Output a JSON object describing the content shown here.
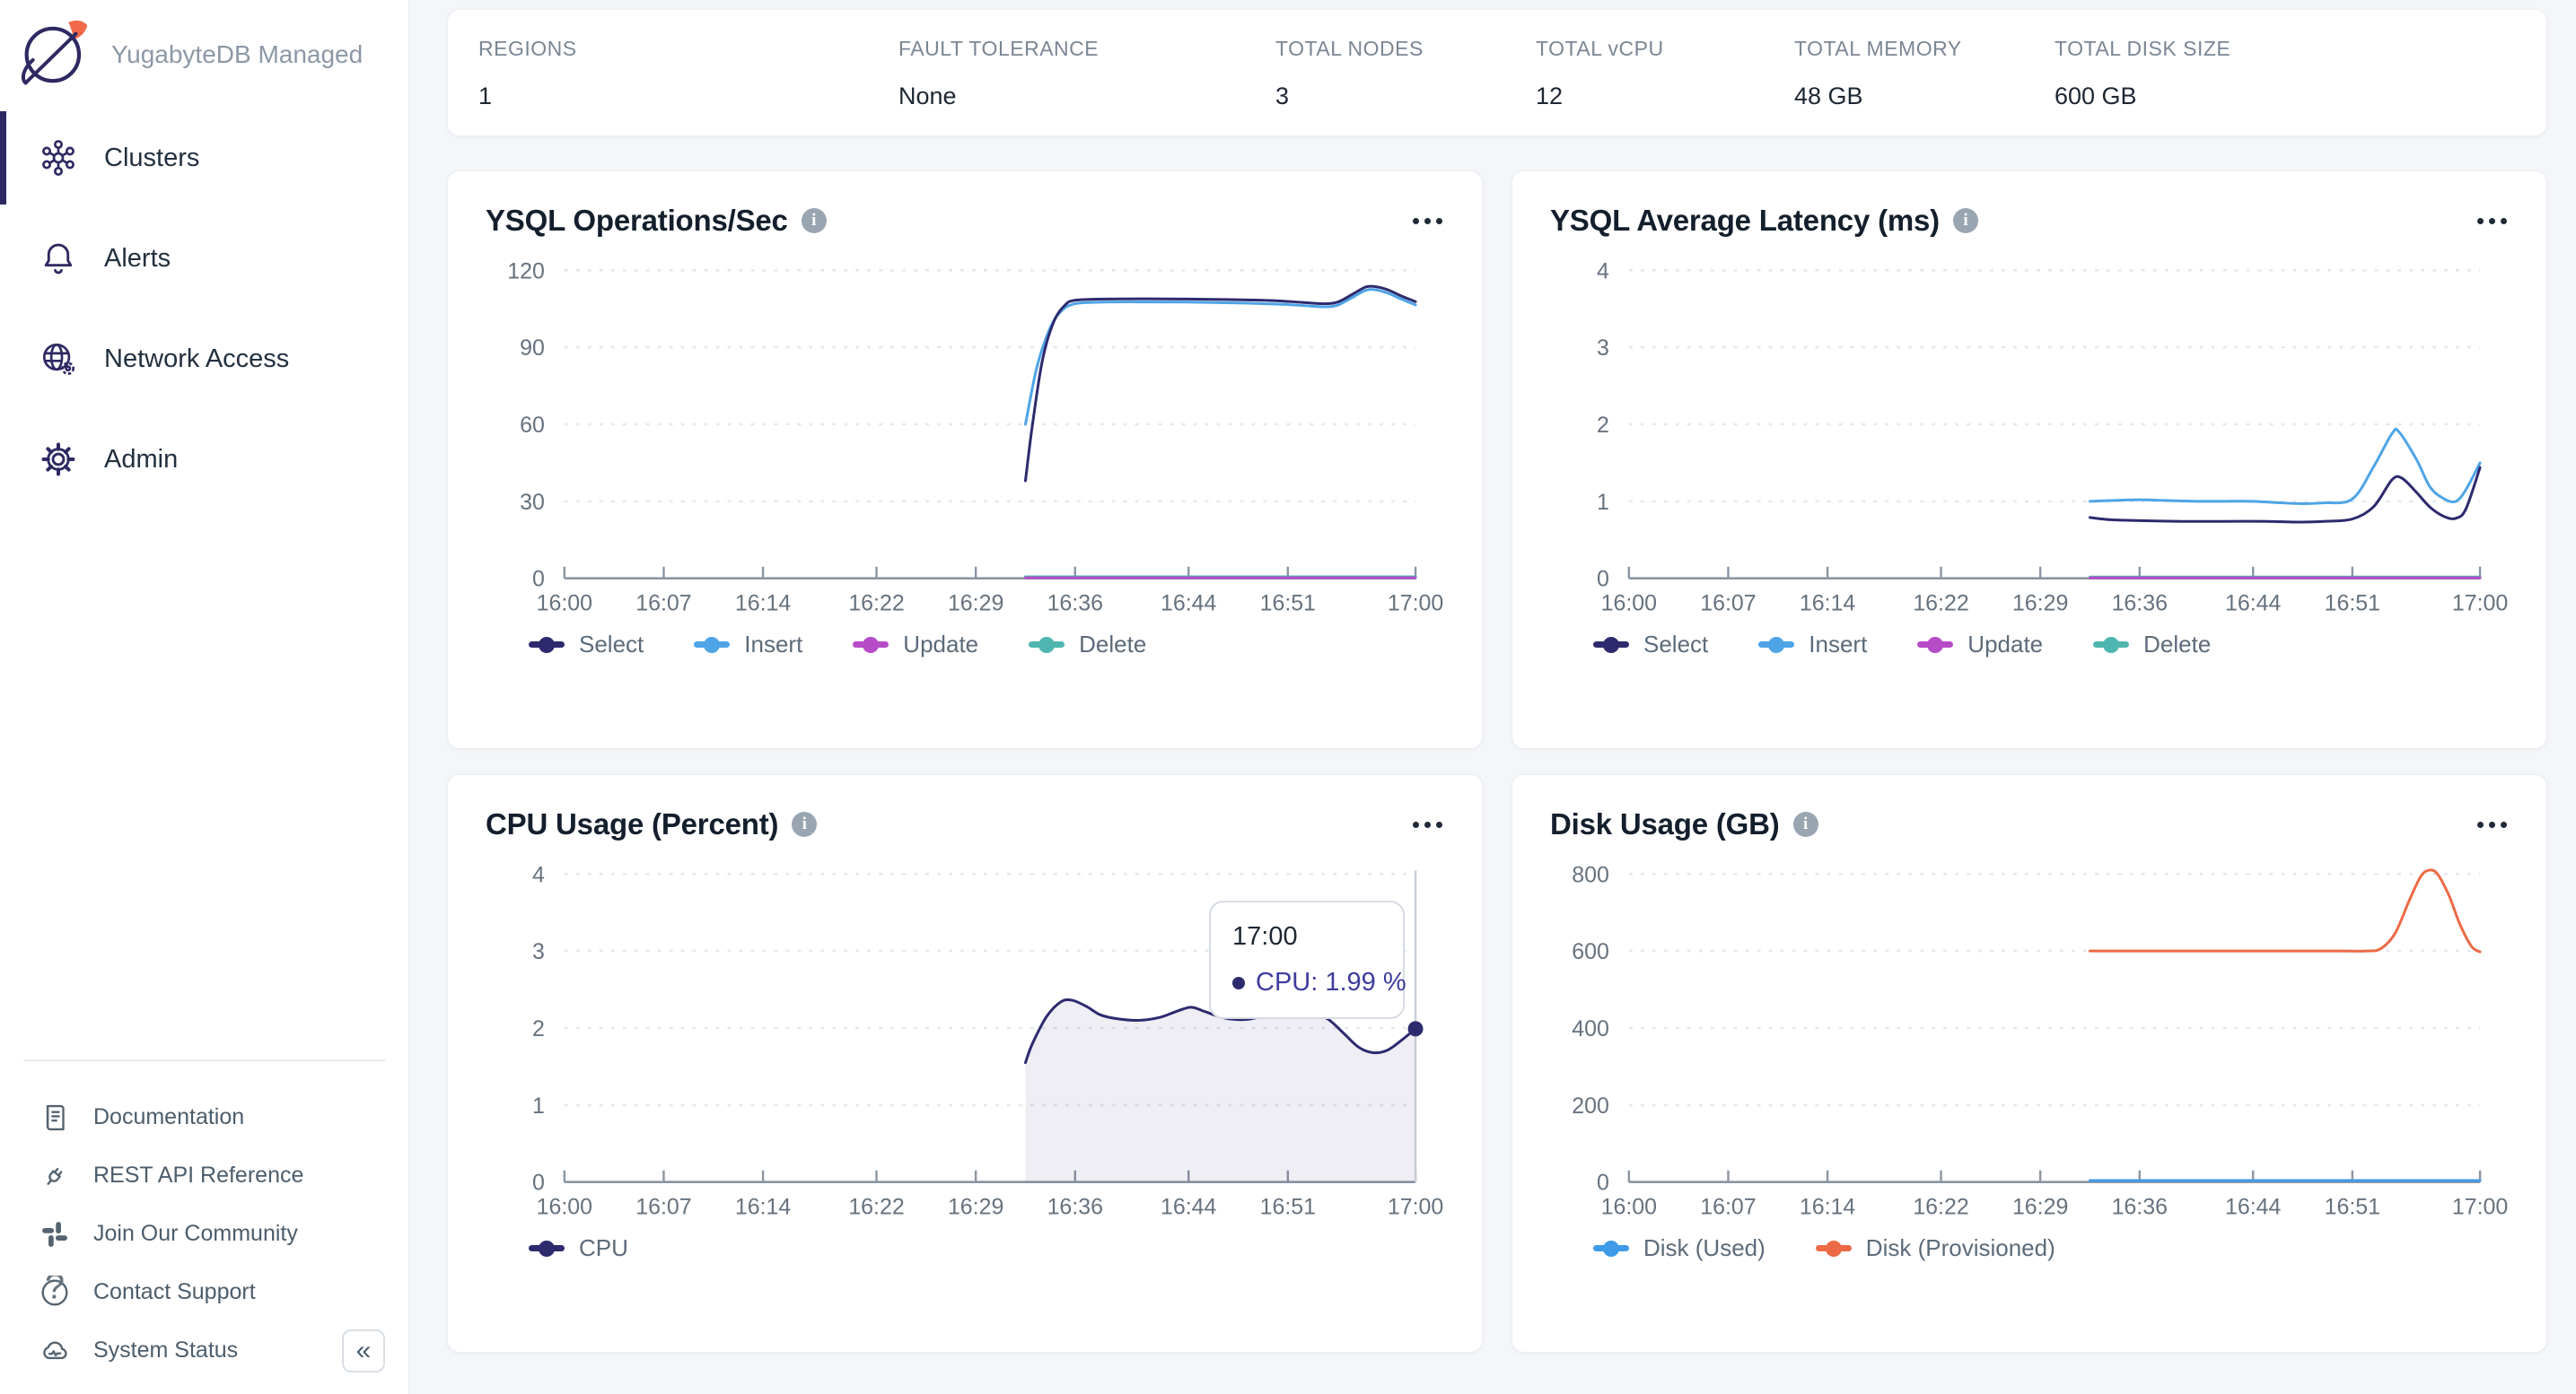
{
  "colors": {
    "page_background": "#F4F6F9",
    "accent_navy": "#2E2962",
    "brand_orange": "#F26A4B",
    "series_select": "#2D2A6E",
    "series_insert": "#4EA4E6",
    "series_update": "#B64BC8",
    "series_delete": "#4FB5B0",
    "series_disk_used": "#3F9BE8",
    "series_disk_provisioned": "#EC6A45",
    "axis": "#8A95A3",
    "gridline": "#E3E8EF"
  },
  "sidebar": {
    "brand": "YugabyteDB Managed",
    "logo_icon": "planet-logo-icon",
    "items": [
      {
        "label": "Clusters",
        "icon": "clusters-icon",
        "active": true
      },
      {
        "label": "Alerts",
        "icon": "alerts-bell-icon",
        "active": false
      },
      {
        "label": "Network Access",
        "icon": "network-access-icon",
        "active": false
      },
      {
        "label": "Admin",
        "icon": "admin-gear-icon",
        "active": false
      }
    ],
    "footer_items": [
      {
        "label": "Documentation",
        "icon": "documentation-icon"
      },
      {
        "label": "REST API Reference",
        "icon": "rest-api-icon"
      },
      {
        "label": "Join Our Community",
        "icon": "slack-community-icon"
      },
      {
        "label": "Contact Support",
        "icon": "contact-support-icon"
      },
      {
        "label": "System Status",
        "icon": "system-status-icon"
      }
    ],
    "collapse_icon": "«"
  },
  "stats": {
    "columns": [
      {
        "label": "REGIONS",
        "value": "1"
      },
      {
        "label": "FAULT TOLERANCE",
        "value": "None"
      },
      {
        "label": "TOTAL NODES",
        "value": "3"
      },
      {
        "label": "TOTAL vCPU",
        "value": "12"
      },
      {
        "label": "TOTAL MEMORY",
        "value": "48 GB"
      },
      {
        "label": "TOTAL DISK SIZE",
        "value": "600 GB"
      }
    ]
  },
  "chart_data": [
    {
      "type": "line",
      "title": "YSQL Operations/Sec",
      "info_icon": "info-icon",
      "menu_icon": "ellipsis-menu-icon",
      "x_domain": [
        0,
        60
      ],
      "x_ticks": [
        {
          "label": "16:00",
          "t": 0
        },
        {
          "label": "16:07",
          "t": 7
        },
        {
          "label": "16:14",
          "t": 14
        },
        {
          "label": "16:22",
          "t": 22
        },
        {
          "label": "16:29",
          "t": 29
        },
        {
          "label": "16:36",
          "t": 36
        },
        {
          "label": "16:44",
          "t": 44
        },
        {
          "label": "16:51",
          "t": 51
        },
        {
          "label": "17:00",
          "t": 60
        }
      ],
      "y_ticks": [
        0,
        30,
        60,
        90,
        120
      ],
      "y_max": 120,
      "grid": true,
      "legend_position": "bottom",
      "series": [
        {
          "name": "Select",
          "color": "#2D2A6E",
          "points": [
            [
              32.5,
              38
            ],
            [
              33,
              60
            ],
            [
              33.7,
              85
            ],
            [
              34.5,
              100
            ],
            [
              35.3,
              106.5
            ],
            [
              36,
              108.3
            ],
            [
              38,
              108.8
            ],
            [
              41,
              108.9
            ],
            [
              44,
              108.8
            ],
            [
              47,
              108.6
            ],
            [
              50,
              108.2
            ],
            [
              52,
              107.5
            ],
            [
              53.5,
              107
            ],
            [
              54.5,
              107.6
            ],
            [
              55.5,
              110.5
            ],
            [
              56.5,
              113.5
            ],
            [
              57.2,
              113.6
            ],
            [
              58,
              112.5
            ],
            [
              59,
              110
            ],
            [
              60,
              107.8
            ]
          ]
        },
        {
          "name": "Insert",
          "color": "#4EA4E6",
          "points": [
            [
              32.5,
              60
            ],
            [
              33.3,
              82
            ],
            [
              34.2,
              97
            ],
            [
              35,
              104
            ],
            [
              36,
              107
            ],
            [
              38,
              107.6
            ],
            [
              41,
              107.7
            ],
            [
              44,
              107.6
            ],
            [
              47,
              107.3
            ],
            [
              50,
              106.9
            ],
            [
              52,
              106.3
            ],
            [
              53.5,
              105.8
            ],
            [
              54.5,
              106.4
            ],
            [
              55.5,
              109.3
            ],
            [
              56.5,
              112.2
            ],
            [
              57.2,
              112.4
            ],
            [
              58,
              111.2
            ],
            [
              59,
              108.8
            ],
            [
              60,
              106.5
            ]
          ]
        },
        {
          "name": "Update",
          "color": "#B64BC8",
          "points": [
            [
              32.5,
              0.2
            ],
            [
              60,
              0.2
            ]
          ]
        },
        {
          "name": "Delete",
          "color": "#4FB5B0",
          "points": [
            [
              32.5,
              0.6
            ],
            [
              60,
              0.6
            ]
          ]
        }
      ]
    },
    {
      "type": "line",
      "title": "YSQL Average Latency (ms)",
      "info_icon": "info-icon",
      "menu_icon": "ellipsis-menu-icon",
      "x_domain": [
        0,
        60
      ],
      "x_ticks": [
        {
          "label": "16:00",
          "t": 0
        },
        {
          "label": "16:07",
          "t": 7
        },
        {
          "label": "16:14",
          "t": 14
        },
        {
          "label": "16:22",
          "t": 22
        },
        {
          "label": "16:29",
          "t": 29
        },
        {
          "label": "16:36",
          "t": 36
        },
        {
          "label": "16:44",
          "t": 44
        },
        {
          "label": "16:51",
          "t": 51
        },
        {
          "label": "17:00",
          "t": 60
        }
      ],
      "y_ticks": [
        0,
        1,
        2,
        3,
        4
      ],
      "y_max": 4,
      "grid": true,
      "legend_position": "bottom",
      "series": [
        {
          "name": "Select",
          "color": "#2D2A6E",
          "points": [
            [
              32.5,
              0.79
            ],
            [
              34,
              0.76
            ],
            [
              36,
              0.75
            ],
            [
              39,
              0.74
            ],
            [
              42,
              0.74
            ],
            [
              45,
              0.74
            ],
            [
              47,
              0.73
            ],
            [
              49,
              0.74
            ],
            [
              51,
              0.77
            ],
            [
              52.5,
              0.93
            ],
            [
              53.8,
              1.28
            ],
            [
              54.5,
              1.3
            ],
            [
              55.5,
              1.12
            ],
            [
              56.5,
              0.92
            ],
            [
              57.5,
              0.8
            ],
            [
              58.3,
              0.78
            ],
            [
              59,
              0.9
            ],
            [
              60,
              1.44
            ]
          ]
        },
        {
          "name": "Insert",
          "color": "#4EA4E6",
          "points": [
            [
              32.5,
              1.0
            ],
            [
              34,
              1.01
            ],
            [
              36,
              1.02
            ],
            [
              38,
              1.01
            ],
            [
              40,
              1.0
            ],
            [
              42,
              1.0
            ],
            [
              44,
              1.0
            ],
            [
              46,
              0.98
            ],
            [
              47.5,
              0.97
            ],
            [
              49,
              0.98
            ],
            [
              51,
              1.03
            ],
            [
              52.5,
              1.45
            ],
            [
              53.8,
              1.88
            ],
            [
              54.3,
              1.9
            ],
            [
              55.5,
              1.55
            ],
            [
              56.5,
              1.18
            ],
            [
              57.5,
              1.03
            ],
            [
              58.3,
              1.0
            ],
            [
              59,
              1.15
            ],
            [
              60,
              1.5
            ]
          ]
        },
        {
          "name": "Update",
          "color": "#B64BC8",
          "points": [
            [
              32.5,
              0.006
            ],
            [
              60,
              0.006
            ]
          ]
        },
        {
          "name": "Delete",
          "color": "#4FB5B0",
          "points": [
            [
              32.5,
              0.018
            ],
            [
              60,
              0.018
            ]
          ]
        }
      ]
    },
    {
      "type": "line",
      "title": "CPU Usage (Percent)",
      "info_icon": "info-icon",
      "menu_icon": "ellipsis-menu-icon",
      "x_domain": [
        0,
        60
      ],
      "x_ticks": [
        {
          "label": "16:00",
          "t": 0
        },
        {
          "label": "16:07",
          "t": 7
        },
        {
          "label": "16:14",
          "t": 14
        },
        {
          "label": "16:22",
          "t": 22
        },
        {
          "label": "16:29",
          "t": 29
        },
        {
          "label": "16:36",
          "t": 36
        },
        {
          "label": "16:44",
          "t": 44
        },
        {
          "label": "16:51",
          "t": 51
        },
        {
          "label": "17:00",
          "t": 60
        }
      ],
      "y_ticks": [
        0,
        1,
        2,
        3,
        4
      ],
      "y_max": 4,
      "grid": true,
      "legend_position": "bottom",
      "crosshair_t": 60,
      "tooltip": {
        "time": "17:00",
        "label": "CPU",
        "value": "1.99 %"
      },
      "series": [
        {
          "name": "CPU",
          "color": "#2D2A6E",
          "area_fill": "rgba(45,42,110,0.08)",
          "end_marker": true,
          "points": [
            [
              32.5,
              1.55
            ],
            [
              33,
              1.8
            ],
            [
              34,
              2.15
            ],
            [
              35,
              2.34
            ],
            [
              35.8,
              2.36
            ],
            [
              36.8,
              2.28
            ],
            [
              37.8,
              2.17
            ],
            [
              39,
              2.12
            ],
            [
              40.5,
              2.1
            ],
            [
              42,
              2.14
            ],
            [
              43.2,
              2.22
            ],
            [
              44.2,
              2.27
            ],
            [
              45.2,
              2.21
            ],
            [
              46.5,
              2.13
            ],
            [
              48,
              2.11
            ],
            [
              49.5,
              2.16
            ],
            [
              51,
              2.19
            ],
            [
              52.5,
              2.2
            ],
            [
              53.8,
              2.12
            ],
            [
              55,
              1.92
            ],
            [
              56,
              1.75
            ],
            [
              57,
              1.68
            ],
            [
              58,
              1.71
            ],
            [
              59,
              1.84
            ],
            [
              60,
              1.99
            ]
          ]
        }
      ]
    },
    {
      "type": "line",
      "title": "Disk Usage (GB)",
      "info_icon": "info-icon",
      "menu_icon": "ellipsis-menu-icon",
      "x_domain": [
        0,
        60
      ],
      "x_ticks": [
        {
          "label": "16:00",
          "t": 0
        },
        {
          "label": "16:07",
          "t": 7
        },
        {
          "label": "16:14",
          "t": 14
        },
        {
          "label": "16:22",
          "t": 22
        },
        {
          "label": "16:29",
          "t": 29
        },
        {
          "label": "16:36",
          "t": 36
        },
        {
          "label": "16:44",
          "t": 44
        },
        {
          "label": "16:51",
          "t": 51
        },
        {
          "label": "17:00",
          "t": 60
        }
      ],
      "y_ticks": [
        0,
        200,
        400,
        600,
        800
      ],
      "y_max": 800,
      "grid": true,
      "legend_position": "bottom",
      "series": [
        {
          "name": "Disk (Used)",
          "color": "#3F9BE8",
          "points": [
            [
              32.5,
              4
            ],
            [
              60,
              4
            ]
          ]
        },
        {
          "name": "Disk (Provisioned)",
          "color": "#EC6A45",
          "points": [
            [
              32.5,
              600
            ],
            [
              40,
              600
            ],
            [
              46,
              600
            ],
            [
              50,
              600
            ],
            [
              52,
              600
            ],
            [
              53,
              606
            ],
            [
              54,
              645
            ],
            [
              55,
              730
            ],
            [
              55.8,
              792
            ],
            [
              56.4,
              810
            ],
            [
              57,
              800
            ],
            [
              57.8,
              745
            ],
            [
              58.6,
              668
            ],
            [
              59.4,
              612
            ],
            [
              60,
              598
            ]
          ]
        }
      ]
    }
  ]
}
